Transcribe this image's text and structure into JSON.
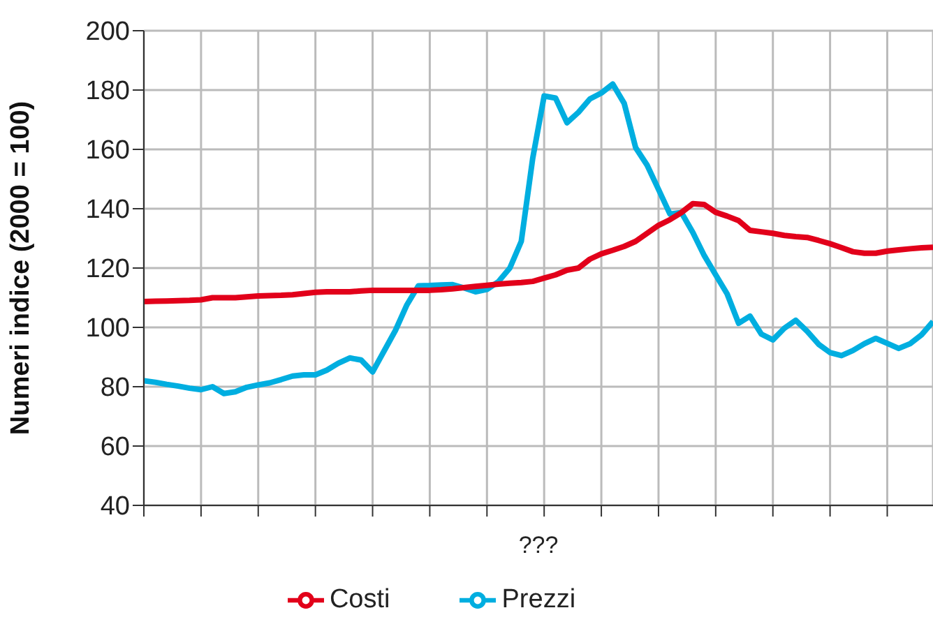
{
  "chart_data": {
    "type": "line",
    "xlabel": "???",
    "ylabel": "Numeri indice (2000 = 100)",
    "categories": [
      null,
      null,
      null,
      null,
      null,
      null,
      null,
      null,
      null,
      null,
      null,
      null,
      null,
      null,
      null,
      null,
      null,
      null,
      null,
      null,
      null,
      null,
      null,
      null,
      null,
      null,
      null,
      null,
      null,
      null,
      null,
      null,
      null,
      null,
      null,
      null,
      null,
      null,
      null,
      null,
      null,
      null,
      null,
      null,
      null,
      null,
      null,
      null,
      null,
      null,
      null,
      null,
      null,
      null,
      null,
      null,
      null,
      null,
      null,
      null,
      null,
      null,
      null,
      null,
      null,
      null,
      null,
      null,
      null,
      null
    ],
    "series": [
      {
        "name": "Prezzi",
        "color": "#00aee0",
        "values": [
          82,
          81.5,
          80.8,
          80.2,
          79.5,
          79,
          80,
          77.7,
          78.3,
          79.8,
          80.6,
          81.3,
          82.4,
          83.6,
          84,
          84,
          85.6,
          87.9,
          89.7,
          89,
          85,
          92,
          99,
          107.6,
          114,
          114.1,
          114.3,
          114.4,
          113.3,
          112,
          112.8,
          115.4,
          120,
          129,
          157,
          178,
          177.3,
          169,
          172.5,
          177,
          179,
          182,
          175.5,
          160.6,
          154.7,
          146.5,
          138.2,
          138.7,
          132,
          124.2,
          117.7,
          111.3,
          101.4,
          103.8,
          97.7,
          95.8,
          99.7,
          102.4,
          98.7,
          94.3,
          91.5,
          90.5,
          92.2,
          94.5,
          96.3,
          94.6,
          92.9,
          94.5,
          97.5,
          102
        ]
      },
      {
        "name": "Costi",
        "color": "#e2001a",
        "values": [
          108.7,
          108.8,
          108.9,
          109,
          109.1,
          109.3,
          110,
          110,
          110,
          110.3,
          110.6,
          110.7,
          110.8,
          111,
          111.4,
          111.8,
          112,
          112,
          112,
          112.3,
          112.5,
          112.5,
          112.5,
          112.5,
          112.5,
          112.5,
          112.7,
          113,
          113.4,
          113.8,
          114.2,
          114.6,
          114.9,
          115.1,
          115.5,
          116.6,
          117.7,
          119.3,
          120,
          123,
          124.8,
          126,
          127.3,
          129,
          131.7,
          134.4,
          136.3,
          138.7,
          141.7,
          141.4,
          138.8,
          137.5,
          136,
          132.7,
          132.2,
          131.7,
          131,
          130.6,
          130.3,
          129.3,
          128.2,
          126.9,
          125.5,
          125,
          125,
          125.7,
          126.1,
          126.5,
          126.8,
          127
        ]
      }
    ],
    "ylim": [
      40,
      200
    ],
    "yticks": [
      40,
      60,
      80,
      100,
      120,
      140,
      160,
      180,
      200
    ],
    "grid": true,
    "legend": "bottom",
    "line_style": "solid"
  }
}
